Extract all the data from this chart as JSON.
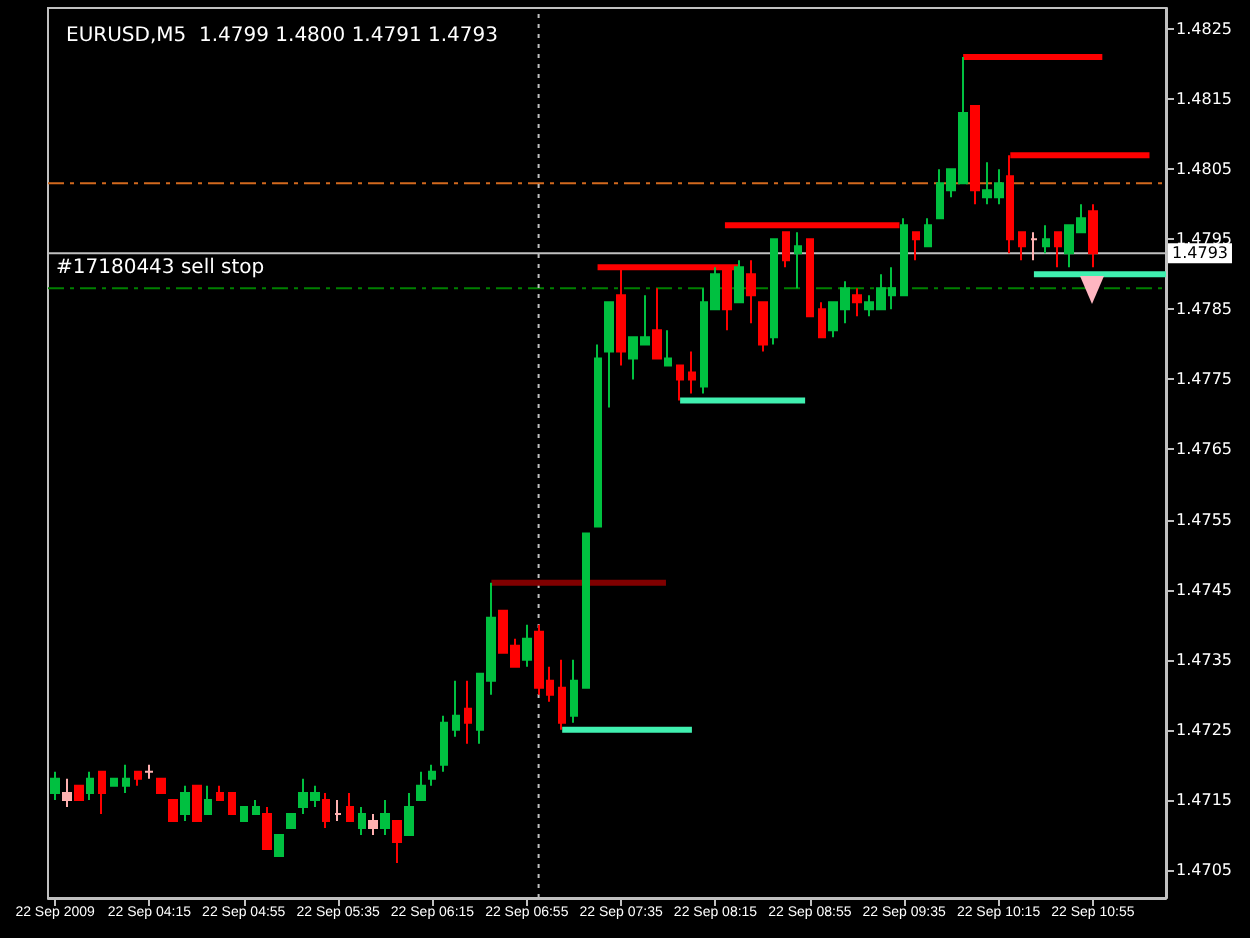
{
  "chart_data": {
    "type": "candlestick",
    "title": "EURUSD,M5  1.4799 1.4800 1.4791 1.4793",
    "x": [
      "2009-09-22T03:35",
      "2009-09-22T03:40",
      "2009-09-22T03:45",
      "2009-09-22T03:50",
      "2009-09-22T03:55",
      "2009-09-22T04:00",
      "2009-09-22T04:05",
      "2009-09-22T04:10",
      "2009-09-22T04:15",
      "2009-09-22T04:20",
      "2009-09-22T04:25",
      "2009-09-22T04:30",
      "2009-09-22T04:35",
      "2009-09-22T04:40",
      "2009-09-22T04:45",
      "2009-09-22T04:50",
      "2009-09-22T04:55",
      "2009-09-22T05:00",
      "2009-09-22T05:05",
      "2009-09-22T05:10",
      "2009-09-22T05:15",
      "2009-09-22T05:20",
      "2009-09-22T05:25",
      "2009-09-22T05:30",
      "2009-09-22T05:35",
      "2009-09-22T05:40",
      "2009-09-22T05:45",
      "2009-09-22T05:50",
      "2009-09-22T05:55",
      "2009-09-22T06:00",
      "2009-09-22T06:05",
      "2009-09-22T06:10",
      "2009-09-22T06:15",
      "2009-09-22T06:20",
      "2009-09-22T06:25",
      "2009-09-22T06:30",
      "2009-09-22T06:35",
      "2009-09-22T06:40",
      "2009-09-22T06:45",
      "2009-09-22T06:50",
      "2009-09-22T06:55",
      "2009-09-22T07:00",
      "2009-09-22T07:05",
      "2009-09-22T07:10",
      "2009-09-22T07:15",
      "2009-09-22T07:20",
      "2009-09-22T07:25",
      "2009-09-22T07:30",
      "2009-09-22T07:35",
      "2009-09-22T07:40",
      "2009-09-22T07:45",
      "2009-09-22T07:50",
      "2009-09-22T07:55",
      "2009-09-22T08:00",
      "2009-09-22T08:05",
      "2009-09-22T08:10",
      "2009-09-22T08:15",
      "2009-09-22T08:20",
      "2009-09-22T08:25",
      "2009-09-22T08:30",
      "2009-09-22T08:35",
      "2009-09-22T08:40",
      "2009-09-22T08:45",
      "2009-09-22T08:50",
      "2009-09-22T08:55",
      "2009-09-22T09:00",
      "2009-09-22T09:05",
      "2009-09-22T09:10",
      "2009-09-22T09:15",
      "2009-09-22T09:20",
      "2009-09-22T09:25",
      "2009-09-22T09:30",
      "2009-09-22T09:35",
      "2009-09-22T09:40",
      "2009-09-22T09:45",
      "2009-09-22T09:50",
      "2009-09-22T09:55",
      "2009-09-22T10:00",
      "2009-09-22T10:05",
      "2009-09-22T10:10",
      "2009-09-22T10:15",
      "2009-09-22T10:20",
      "2009-09-22T10:25",
      "2009-09-22T10:30",
      "2009-09-22T10:35",
      "2009-09-22T10:40",
      "2009-09-22T10:45",
      "2009-09-22T10:50",
      "2009-09-22T10:55"
    ],
    "series": [
      {
        "type": "candlestick",
        "ohlc": [
          [
            1.4716,
            1.4719,
            1.4715,
            1.4718
          ],
          [
            1.4716,
            1.4718,
            1.4714,
            1.4715
          ],
          [
            1.4717,
            1.4717,
            1.4715,
            1.4715
          ],
          [
            1.4716,
            1.4719,
            1.4715,
            1.4718
          ],
          [
            1.4719,
            1.4719,
            1.4713,
            1.4716
          ],
          [
            1.4717,
            1.4718,
            1.4717,
            1.4718
          ],
          [
            1.4717,
            1.472,
            1.4716,
            1.4718
          ],
          [
            1.4719,
            1.4719,
            1.4717,
            1.4718
          ],
          [
            1.4719,
            1.472,
            1.4718,
            1.4719
          ],
          [
            1.4718,
            1.4718,
            1.4716,
            1.4716
          ],
          [
            1.4715,
            1.4715,
            1.4712,
            1.4712
          ],
          [
            1.4713,
            1.4717,
            1.4712,
            1.4716
          ],
          [
            1.4717,
            1.4717,
            1.4712,
            1.4712
          ],
          [
            1.4713,
            1.4717,
            1.4713,
            1.4715
          ],
          [
            1.4716,
            1.4717,
            1.4715,
            1.4715
          ],
          [
            1.4716,
            1.4716,
            1.4713,
            1.4713
          ],
          [
            1.4712,
            1.4714,
            1.4712,
            1.4714
          ],
          [
            1.4713,
            1.4715,
            1.4713,
            1.4714
          ],
          [
            1.4713,
            1.4714,
            1.4708,
            1.4708
          ],
          [
            1.4707,
            1.471,
            1.4707,
            1.471
          ],
          [
            1.4711,
            1.4713,
            1.4711,
            1.4713
          ],
          [
            1.4714,
            1.4718,
            1.4713,
            1.4716
          ],
          [
            1.4715,
            1.4717,
            1.4714,
            1.4716
          ],
          [
            1.4715,
            1.4716,
            1.4711,
            1.4712
          ],
          [
            1.4713,
            1.4715,
            1.4712,
            1.4713
          ],
          [
            1.4714,
            1.4716,
            1.4712,
            1.4712
          ],
          [
            1.4711,
            1.4714,
            1.471,
            1.4713
          ],
          [
            1.4712,
            1.4713,
            1.471,
            1.4711
          ],
          [
            1.4711,
            1.4715,
            1.471,
            1.4713
          ],
          [
            1.4712,
            1.4712,
            1.4706,
            1.4709
          ],
          [
            1.471,
            1.4716,
            1.471,
            1.4714
          ],
          [
            1.4715,
            1.4719,
            1.4715,
            1.4717
          ],
          [
            1.4718,
            1.472,
            1.4717,
            1.4719
          ],
          [
            1.472,
            1.4727,
            1.4719,
            1.4726
          ],
          [
            1.4725,
            1.4732,
            1.4724,
            1.4727
          ],
          [
            1.4728,
            1.4732,
            1.4723,
            1.4726
          ],
          [
            1.4725,
            1.4733,
            1.4723,
            1.4733
          ],
          [
            1.4732,
            1.4746,
            1.473,
            1.4741
          ],
          [
            1.4742,
            1.4742,
            1.4736,
            1.4736
          ],
          [
            1.4737,
            1.4738,
            1.4734,
            1.4734
          ],
          [
            1.4735,
            1.474,
            1.4734,
            1.4738
          ],
          [
            1.4739,
            1.474,
            1.473,
            1.4731
          ],
          [
            1.4732,
            1.4734,
            1.4729,
            1.473
          ],
          [
            1.4731,
            1.4735,
            1.4725,
            1.4726
          ],
          [
            1.4727,
            1.4735,
            1.4726,
            1.4732
          ],
          [
            1.4731,
            1.4753,
            1.4731,
            1.4753
          ],
          [
            1.4754,
            1.478,
            1.4754,
            1.4778
          ],
          [
            1.4779,
            1.4786,
            1.4771,
            1.4786
          ],
          [
            1.4787,
            1.4791,
            1.4777,
            1.4779
          ],
          [
            1.4778,
            1.4781,
            1.4775,
            1.4781
          ],
          [
            1.478,
            1.4787,
            1.478,
            1.4781
          ],
          [
            1.4782,
            1.4788,
            1.4778,
            1.4778
          ],
          [
            1.4777,
            1.4782,
            1.4777,
            1.4778
          ],
          [
            1.4777,
            1.4777,
            1.4772,
            1.4775
          ],
          [
            1.4776,
            1.4779,
            1.4773,
            1.4775
          ],
          [
            1.4774,
            1.4788,
            1.4773,
            1.4786
          ],
          [
            1.4785,
            1.4791,
            1.4785,
            1.479
          ],
          [
            1.4791,
            1.4791,
            1.4782,
            1.4785
          ],
          [
            1.4786,
            1.4792,
            1.4786,
            1.4791
          ],
          [
            1.479,
            1.4792,
            1.4783,
            1.4787
          ],
          [
            1.4786,
            1.4786,
            1.4779,
            1.478
          ],
          [
            1.4781,
            1.4795,
            1.478,
            1.4795
          ],
          [
            1.4796,
            1.4796,
            1.4791,
            1.4792
          ],
          [
            1.4793,
            1.4796,
            1.4788,
            1.4794
          ],
          [
            1.4795,
            1.4795,
            1.4784,
            1.4784
          ],
          [
            1.4785,
            1.4786,
            1.4781,
            1.4781
          ],
          [
            1.4782,
            1.4786,
            1.4781,
            1.4786
          ],
          [
            1.4785,
            1.4789,
            1.4783,
            1.4788
          ],
          [
            1.4787,
            1.4788,
            1.4784,
            1.4786
          ],
          [
            1.4785,
            1.4787,
            1.4784,
            1.4786
          ],
          [
            1.4785,
            1.479,
            1.4785,
            1.4788
          ],
          [
            1.4787,
            1.4791,
            1.4785,
            1.4788
          ],
          [
            1.4787,
            1.4798,
            1.4787,
            1.4797
          ],
          [
            1.4796,
            1.4796,
            1.4792,
            1.4795
          ],
          [
            1.4794,
            1.4798,
            1.4794,
            1.4797
          ],
          [
            1.4798,
            1.4805,
            1.4798,
            1.4803
          ],
          [
            1.4802,
            1.4805,
            1.4801,
            1.4805
          ],
          [
            1.4803,
            1.4821,
            1.4803,
            1.4813
          ],
          [
            1.4814,
            1.4814,
            1.48,
            1.4802
          ],
          [
            1.4801,
            1.4806,
            1.48,
            1.4802
          ],
          [
            1.4801,
            1.4805,
            1.48,
            1.4803
          ],
          [
            1.4804,
            1.4807,
            1.4793,
            1.4795
          ],
          [
            1.4796,
            1.4796,
            1.4792,
            1.4794
          ],
          [
            1.4795,
            1.4796,
            1.4792,
            1.4795
          ],
          [
            1.4794,
            1.4797,
            1.4793,
            1.4795
          ],
          [
            1.4796,
            1.4796,
            1.4791,
            1.4794
          ],
          [
            1.4793,
            1.4797,
            1.4791,
            1.4797
          ],
          [
            1.4796,
            1.48,
            1.4796,
            1.4798
          ],
          [
            1.4799,
            1.48,
            1.4791,
            1.4793
          ]
        ],
        "colors": [
          "#00c040",
          "#ffb0b0",
          "#ff0000",
          "#00c040",
          "#ff0000",
          "#00c040",
          "#00c040",
          "#ff0000",
          "#ffb0b0",
          "#ff0000",
          "#ff0000",
          "#00c040",
          "#ff0000",
          "#00c040",
          "#ff0000",
          "#ff0000",
          "#00c040",
          "#00c040",
          "#ff0000",
          "#00c040",
          "#00c040",
          "#00c040",
          "#00c040",
          "#ff0000",
          "#ffb0b0",
          "#ff0000",
          "#00c040",
          "#ffb0b0",
          "#00c040",
          "#ff0000",
          "#00c040",
          "#00c040",
          "#00c040",
          "#00c040",
          "#00c040",
          "#ff0000",
          "#00c040",
          "#00c040",
          "#ff0000",
          "#ff0000",
          "#00c040",
          "#ff0000",
          "#ff0000",
          "#ff0000",
          "#00c040",
          "#00c040",
          "#00c040",
          "#00c040",
          "#ff0000",
          "#00c040",
          "#00c040",
          "#ff0000",
          "#00c040",
          "#ff0000",
          "#ff0000",
          "#00c040",
          "#00c040",
          "#ff0000",
          "#00c040",
          "#ff0000",
          "#ff0000",
          "#00c040",
          "#ff0000",
          "#00c040",
          "#ff0000",
          "#ff0000",
          "#00c040",
          "#00c040",
          "#ff0000",
          "#00c040",
          "#00c040",
          "#00c040",
          "#00c040",
          "#ff0000",
          "#00c040",
          "#00c040",
          "#00c040",
          "#00c040",
          "#ff0000",
          "#00c040",
          "#00c040",
          "#ff0000",
          "#ff0000",
          "#ffb0b0",
          "#00c040",
          "#ff0000",
          "#00c040",
          "#00c040",
          "#ff0000"
        ]
      },
      {
        "type": "line",
        "x": [
          "2009-09-22T07:25",
          "2009-09-22T08:25"
        ],
        "values": [
          1.4791,
          1.4791
        ],
        "color": "#ff0000"
      },
      {
        "type": "line",
        "x": [
          "2009-09-22T08:19",
          "2009-09-22T09:33"
        ],
        "values": [
          1.4797,
          1.4797
        ],
        "color": "#ff0000"
      },
      {
        "type": "line",
        "x": [
          "2009-09-22T10:00",
          "2009-09-22T10:59"
        ],
        "values": [
          1.4821,
          1.4821
        ],
        "color": "#ff0000"
      },
      {
        "type": "line",
        "x": [
          "2009-09-22T10:20",
          "2009-09-22T11:19"
        ],
        "values": [
          1.4807,
          1.4807
        ],
        "color": "#ff0000"
      },
      {
        "type": "line",
        "x": [
          "2009-09-22T08:00",
          "2009-09-22T08:53"
        ],
        "values": [
          1.4772,
          1.4772
        ],
        "color": "#40f0b0"
      },
      {
        "type": "line",
        "x": [
          "2009-09-22T07:10",
          "2009-09-22T08:05"
        ],
        "values": [
          1.4725,
          1.4725
        ],
        "color": "#40f0b0"
      },
      {
        "type": "line",
        "x": [
          "2009-09-22T10:30",
          "2009-09-22T11:26"
        ],
        "values": [
          1.479,
          1.479
        ],
        "color": "#40f0b0"
      },
      {
        "type": "line",
        "x": [
          "2009-09-22T06:40",
          "2009-09-22T07:54"
        ],
        "values": [
          1.4746,
          1.4746
        ],
        "color": "#800000"
      }
    ],
    "xlim": [
      "2009-09-22T03:32",
      "2009-09-22T11:26"
    ],
    "xticks": [
      {
        "value": "2009-09-22T03:35",
        "label": "22 Sep 2009"
      },
      {
        "value": "2009-09-22T04:15",
        "label": "22 Sep 04:15"
      },
      {
        "value": "2009-09-22T04:55",
        "label": "22 Sep 04:55"
      },
      {
        "value": "2009-09-22T05:35",
        "label": "22 Sep 05:35"
      },
      {
        "value": "2009-09-22T06:15",
        "label": "22 Sep 06:15"
      },
      {
        "value": "2009-09-22T06:55",
        "label": "22 Sep 06:55"
      },
      {
        "value": "2009-09-22T07:35",
        "label": "22 Sep 07:35"
      },
      {
        "value": "2009-09-22T08:15",
        "label": "22 Sep 08:15"
      },
      {
        "value": "2009-09-22T08:55",
        "label": "22 Sep 08:55"
      },
      {
        "value": "2009-09-22T09:35",
        "label": "22 Sep 09:35"
      },
      {
        "value": "2009-09-22T10:15",
        "label": "22 Sep 10:15"
      },
      {
        "value": "2009-09-22T10:55",
        "label": "22 Sep 10:55"
      }
    ],
    "ylim": [
      1.4701,
      1.4828
    ],
    "yticks": [
      1.4705,
      1.4715,
      1.4725,
      1.4735,
      1.4745,
      1.4755,
      1.4765,
      1.4775,
      1.4785,
      1.4795,
      1.4805,
      1.4815,
      1.4825
    ],
    "ref_lines": [
      {
        "axis": "y",
        "value": 1.4803,
        "color": "#d2691e",
        "line_style": "dashed"
      },
      {
        "axis": "y",
        "value": 1.4788,
        "color": "#008000",
        "line_style": "dashed",
        "label": "#17180443 sell stop"
      },
      {
        "axis": "y",
        "value": 1.4793,
        "color": "#c0c0c0",
        "line_style": "solid",
        "label": "1.4793"
      },
      {
        "axis": "x",
        "value": "2009-09-22T07:00",
        "color": "#c0c0c0",
        "line_style": "dotted"
      }
    ],
    "grid": false
  }
}
